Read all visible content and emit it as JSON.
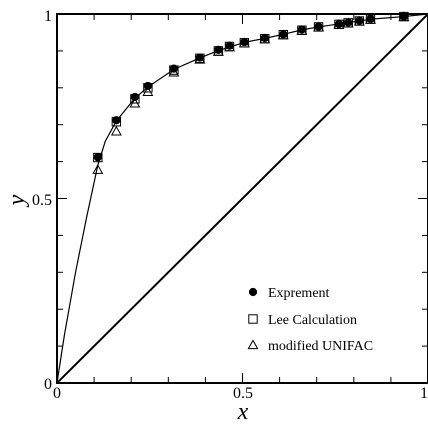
{
  "chart_data": {
    "type": "scatter",
    "title": "",
    "xlabel": "x",
    "ylabel": "y",
    "xlim": [
      0,
      1
    ],
    "ylim": [
      0,
      1
    ],
    "x_ticks": [
      "0",
      "0.5",
      "1"
    ],
    "y_ticks": [
      "0",
      "0.5",
      "1"
    ],
    "grid": false,
    "legend_position": "bottom-right",
    "series": [
      {
        "name": "Exprement",
        "marker": "filled-circle",
        "x": [
          0.11,
          0.16,
          0.21,
          0.245,
          0.315,
          0.385,
          0.435,
          0.465,
          0.505,
          0.56,
          0.61,
          0.66,
          0.705,
          0.76,
          0.785,
          0.815,
          0.845,
          0.935
        ],
        "y": [
          0.612,
          0.712,
          0.775,
          0.805,
          0.852,
          0.882,
          0.903,
          0.914,
          0.924,
          0.935,
          0.945,
          0.958,
          0.966,
          0.973,
          0.977,
          0.982,
          0.987,
          0.993
        ]
      },
      {
        "name": "Lee Calculation",
        "marker": "open-square",
        "x": [
          0.11,
          0.16,
          0.21,
          0.245,
          0.315,
          0.385,
          0.435,
          0.465,
          0.505,
          0.56,
          0.61,
          0.66,
          0.705,
          0.76,
          0.785,
          0.815,
          0.845,
          0.935
        ],
        "y": [
          0.611,
          0.708,
          0.77,
          0.8,
          0.848,
          0.88,
          0.9,
          0.912,
          0.922,
          0.933,
          0.944,
          0.956,
          0.965,
          0.972,
          0.976,
          0.981,
          0.986,
          0.993
        ]
      },
      {
        "name": "modified UNIFAC",
        "marker": "open-triangle",
        "x": [
          0.11,
          0.16,
          0.21,
          0.245,
          0.315,
          0.385,
          0.435,
          0.465,
          0.505,
          0.56,
          0.61,
          0.66,
          0.705,
          0.76,
          0.785,
          0.815,
          0.845,
          0.935
        ],
        "y": [
          0.578,
          0.682,
          0.758,
          0.789,
          0.842,
          0.877,
          0.898,
          0.91,
          0.921,
          0.932,
          0.943,
          0.955,
          0.964,
          0.971,
          0.975,
          0.98,
          0.985,
          0.992
        ]
      }
    ],
    "fit_curve": {
      "x": [
        0,
        0.02,
        0.05,
        0.08,
        0.11,
        0.13,
        0.16,
        0.21,
        0.245,
        0.315,
        0.385,
        0.435,
        0.505,
        0.56,
        0.61,
        0.66,
        0.705,
        0.76,
        0.815,
        0.845,
        0.935,
        1.0
      ],
      "y": [
        0,
        0.13,
        0.3,
        0.45,
        0.59,
        0.655,
        0.71,
        0.772,
        0.802,
        0.85,
        0.881,
        0.901,
        0.923,
        0.934,
        0.945,
        0.957,
        0.965,
        0.973,
        0.981,
        0.986,
        0.993,
        1.0
      ]
    },
    "diagonal": {
      "x": [
        0,
        1
      ],
      "y": [
        0,
        1
      ]
    }
  }
}
